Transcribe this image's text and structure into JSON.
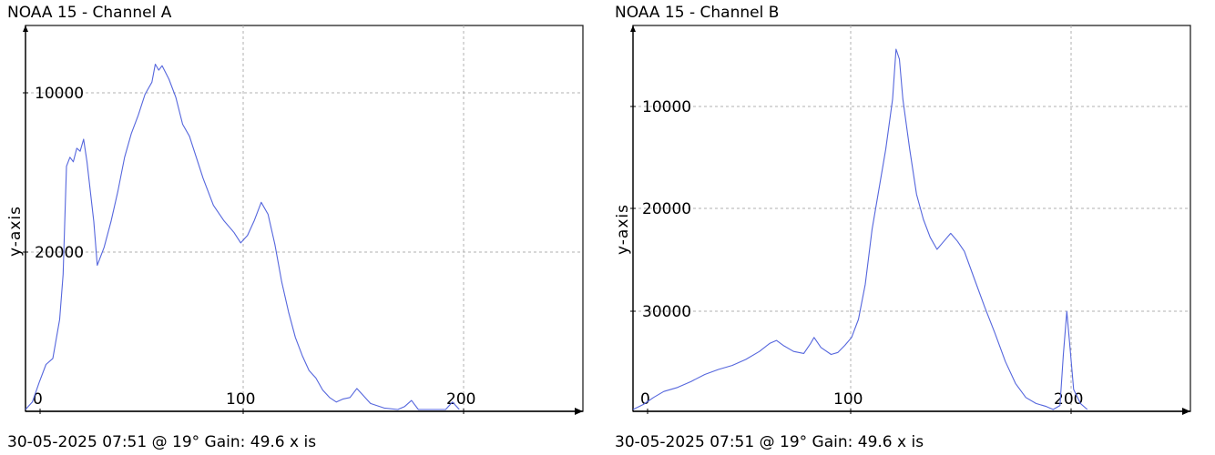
{
  "chart_data": [
    {
      "type": "line",
      "title": "NOAA 15 - Channel A",
      "xlabel": "",
      "ylabel": "y-axis",
      "xlim": [
        -5,
        155
      ],
      "ylim": [
        0,
        24
      ],
      "x_ticks": [
        0,
        100,
        200
      ],
      "y_ticks": [
        10000,
        20000
      ],
      "footer": "30-05-2025 07:51 @ 19° Gain: 49.6",
      "footer_tail": "x is",
      "grid": true,
      "line_color": "#5566dd",
      "series": [
        {
          "points": [
            [
              -5,
              0.0
            ],
            [
              -3,
              0.5
            ],
            [
              -1,
              1.8
            ],
            [
              1,
              3.0
            ],
            [
              3,
              3.4
            ],
            [
              5,
              6.0
            ],
            [
              6,
              9.0
            ],
            [
              7,
              16.2
            ],
            [
              8,
              16.8
            ],
            [
              9,
              16.5
            ],
            [
              10,
              17.4
            ],
            [
              11,
              17.2
            ],
            [
              12,
              18.0
            ],
            [
              13,
              16.5
            ],
            [
              15,
              12.5
            ],
            [
              16,
              9.6
            ],
            [
              18,
              10.8
            ],
            [
              20,
              12.5
            ],
            [
              22,
              14.5
            ],
            [
              24,
              16.8
            ],
            [
              26,
              18.4
            ],
            [
              28,
              19.6
            ],
            [
              30,
              21.0
            ],
            [
              32,
              21.8
            ],
            [
              33,
              23.0
            ],
            [
              34,
              22.6
            ],
            [
              35,
              22.9
            ],
            [
              37,
              22.0
            ],
            [
              39,
              20.8
            ],
            [
              41,
              19.0
            ],
            [
              43,
              18.2
            ],
            [
              45,
              16.8
            ],
            [
              47,
              15.4
            ],
            [
              50,
              13.6
            ],
            [
              53,
              12.6
            ],
            [
              56,
              11.8
            ],
            [
              58,
              11.1
            ],
            [
              60,
              11.6
            ],
            [
              62,
              12.6
            ],
            [
              64,
              13.8
            ],
            [
              66,
              13.0
            ],
            [
              68,
              11.0
            ],
            [
              70,
              8.5
            ],
            [
              72,
              6.5
            ],
            [
              74,
              4.8
            ],
            [
              76,
              3.6
            ],
            [
              78,
              2.6
            ],
            [
              80,
              2.1
            ],
            [
              82,
              1.3
            ],
            [
              84,
              0.8
            ],
            [
              86,
              0.5
            ],
            [
              88,
              0.7
            ],
            [
              90,
              0.8
            ],
            [
              92,
              1.4
            ],
            [
              94,
              0.9
            ],
            [
              96,
              0.4
            ],
            [
              100,
              0.1
            ],
            [
              104,
              0.0
            ],
            [
              106,
              0.2
            ],
            [
              108,
              0.6
            ],
            [
              110,
              0.0
            ],
            [
              114,
              0.0
            ],
            [
              118,
              0.0
            ],
            [
              120,
              0.5
            ],
            [
              122,
              0.0
            ]
          ]
        }
      ]
    },
    {
      "type": "line",
      "title": "NOAA 15 - Channel B",
      "xlabel": "",
      "ylabel": "y-axis",
      "xlim": [
        -5,
        155
      ],
      "ylim": [
        0,
        36
      ],
      "x_ticks": [
        0,
        100,
        200
      ],
      "y_ticks": [
        10000,
        20000,
        30000
      ],
      "footer": "30-05-2025 07:51 @ 19° Gain: 49.6",
      "footer_tail": "x is",
      "grid": true,
      "line_color": "#5566dd",
      "series": [
        {
          "points": [
            [
              -5,
              0.0
            ],
            [
              -2,
              0.5
            ],
            [
              1,
              1.2
            ],
            [
              4,
              1.8
            ],
            [
              8,
              2.2
            ],
            [
              12,
              2.8
            ],
            [
              16,
              3.5
            ],
            [
              20,
              4.0
            ],
            [
              24,
              4.4
            ],
            [
              28,
              5.0
            ],
            [
              32,
              5.8
            ],
            [
              35,
              6.6
            ],
            [
              37,
              6.9
            ],
            [
              39,
              6.4
            ],
            [
              42,
              5.8
            ],
            [
              45,
              5.6
            ],
            [
              47,
              6.6
            ],
            [
              48,
              7.2
            ],
            [
              50,
              6.2
            ],
            [
              53,
              5.5
            ],
            [
              55,
              5.7
            ],
            [
              57,
              6.4
            ],
            [
              59,
              7.2
            ],
            [
              61,
              9.0
            ],
            [
              63,
              12.5
            ],
            [
              65,
              18.0
            ],
            [
              67,
              22.0
            ],
            [
              69,
              26.0
            ],
            [
              71,
              31.0
            ],
            [
              72,
              36.0
            ],
            [
              73,
              35.0
            ],
            [
              74,
              31.0
            ],
            [
              76,
              26.0
            ],
            [
              78,
              21.5
            ],
            [
              80,
              19.0
            ],
            [
              82,
              17.2
            ],
            [
              84,
              16.0
            ],
            [
              86,
              16.8
            ],
            [
              88,
              17.6
            ],
            [
              90,
              16.8
            ],
            [
              92,
              15.8
            ],
            [
              95,
              13.0
            ],
            [
              98,
              10.2
            ],
            [
              101,
              7.6
            ],
            [
              104,
              4.8
            ],
            [
              107,
              2.6
            ],
            [
              110,
              1.2
            ],
            [
              113,
              0.6
            ],
            [
              116,
              0.3
            ],
            [
              118,
              0.0
            ],
            [
              120,
              0.4
            ],
            [
              121,
              5.5
            ],
            [
              122,
              9.8
            ],
            [
              123,
              6.0
            ],
            [
              124,
              2.0
            ],
            [
              126,
              0.6
            ],
            [
              128,
              0.0
            ]
          ]
        }
      ]
    }
  ]
}
